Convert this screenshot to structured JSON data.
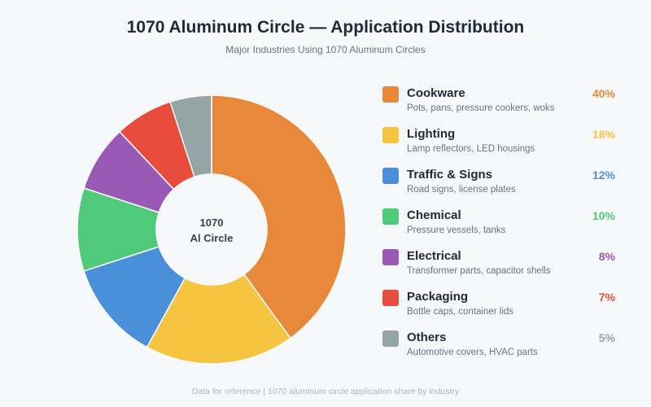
{
  "title": "1070 Aluminum Circle — Application Distribution",
  "subtitle": "Major Industries Using 1070 Aluminum Circles",
  "footer": "Data for reference | 1070 aluminum circle application share by industry",
  "center_label": [
    "1070",
    "Al Circle"
  ],
  "chart_data": {
    "type": "pie",
    "donut": true,
    "categories": [
      "Cookware",
      "Lighting",
      "Traffic & Signs",
      "Chemical",
      "Electrical",
      "Packaging",
      "Others"
    ],
    "values": [
      40,
      18,
      12,
      10,
      8,
      7,
      5
    ],
    "unit": "%",
    "colors": [
      "#e8883a",
      "#f5c542",
      "#4a8fd9",
      "#4fc97a",
      "#9b59b6",
      "#e74c3c",
      "#95a5a6"
    ],
    "descriptions": [
      "Pots, pans, pressure cookers, woks",
      "Lamp reflectors, LED housings",
      "Road signs, license plates",
      "Pressure vessels, tanks",
      "Transformer parts, capacitor shells",
      "Bottle caps, container lids",
      "Automotive covers, HVAC parts"
    ],
    "labels": [
      "40%",
      "18%",
      "12%",
      "10%",
      "8%",
      "7%",
      "5%"
    ],
    "legend_position": "right"
  }
}
